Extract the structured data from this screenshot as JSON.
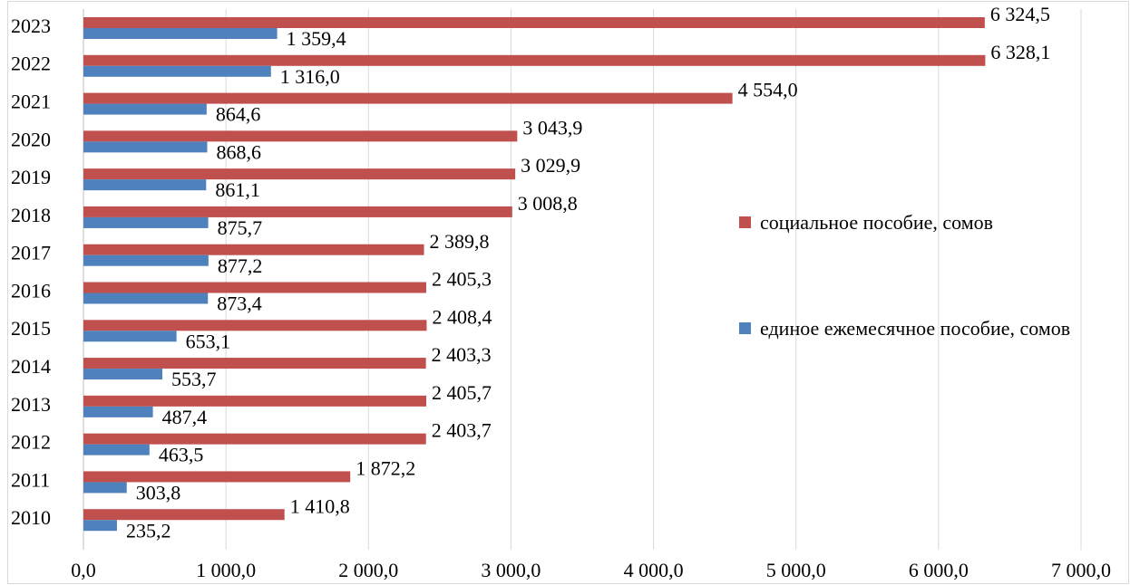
{
  "chart_data": {
    "type": "hbar",
    "categories": [
      "2023",
      "2022",
      "2021",
      "2020",
      "2019",
      "2018",
      "2017",
      "2016",
      "2015",
      "2014",
      "2013",
      "2012",
      "2011",
      "2010"
    ],
    "series": [
      {
        "name": "социальное пособие, сомов",
        "color": "#c0504d",
        "values": [
          6324.5,
          6328.1,
          4554.0,
          3043.9,
          3029.9,
          3008.8,
          2389.8,
          2405.3,
          2408.4,
          2403.3,
          2405.7,
          2403.7,
          1872.2,
          1410.8
        ],
        "value_labels": [
          "6 324,5",
          "6 328,1",
          "4 554,0",
          "3 043,9",
          "3 029,9",
          "3 008,8",
          "2 389,8",
          "2 405,3",
          "2 408,4",
          "2 403,3",
          "2 405,7",
          "2 403,7",
          "1 872,2",
          "1 410,8"
        ]
      },
      {
        "name": "единое ежемесячное пособие, сомов",
        "color": "#4f81bd",
        "values": [
          1359.4,
          1316.0,
          864.6,
          868.6,
          861.1,
          875.7,
          877.2,
          873.4,
          653.1,
          553.7,
          487.4,
          463.5,
          303.8,
          235.2
        ],
        "value_labels": [
          "1 359,4",
          "1 316,0",
          "864,6",
          "868,6",
          "861,1",
          "875,7",
          "877,2",
          "873,4",
          "653,1",
          "553,7",
          "487,4",
          "463,5",
          "303,8",
          "235,2"
        ]
      }
    ],
    "xlim": [
      0,
      7000
    ],
    "xticks": [
      {
        "value": 0,
        "label": "0,0"
      },
      {
        "value": 1000,
        "label": "1 000,0"
      },
      {
        "value": 2000,
        "label": "2 000,0"
      },
      {
        "value": 3000,
        "label": "3 000,0"
      },
      {
        "value": 4000,
        "label": "4 000,0"
      },
      {
        "value": 5000,
        "label": "5 000,0"
      },
      {
        "value": 6000,
        "label": "6 000,0"
      },
      {
        "value": 7000,
        "label": "7 000,0"
      }
    ],
    "grid": true,
    "legend": "right"
  }
}
